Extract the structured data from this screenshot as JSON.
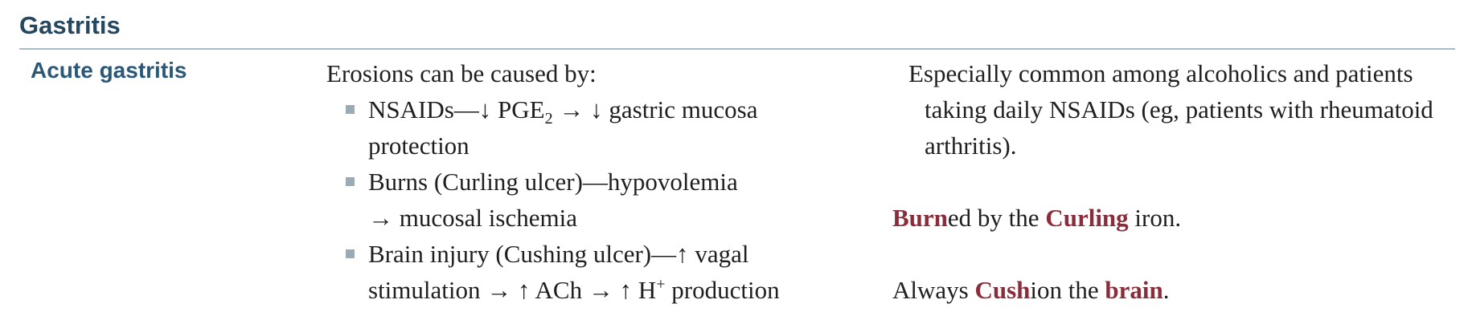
{
  "section": {
    "title": "Gastritis"
  },
  "row": {
    "label": "Acute gastritis",
    "intro": "Erosions can be caused by:",
    "bullets": [
      {
        "b1_a": "NSAIDs—",
        "b1_arrow1": "↓",
        "b1_b": " PGE",
        "b1_sub": "2",
        "b1_c": " → ",
        "b1_arrow2": "↓",
        "b1_d": " gastric mucosa protection"
      },
      {
        "b2_a": "Burns (Curling ulcer)—hypovolemia",
        "b2_b": "→ mucosal ischemia"
      },
      {
        "b3_a": "Brain injury (Cushing ulcer)—",
        "b3_up1": "↑",
        "b3_b": " vagal stimulation → ",
        "b3_up2": "↑",
        "b3_c": " ACh → ",
        "b3_up3": "↑",
        "b3_d": " H",
        "b3_sup": "+",
        "b3_e": " production"
      }
    ],
    "notes": {
      "common": "Especially common among alcoholics and patients taking daily NSAIDs (eg, patients with rheumatoid arthritis).",
      "curling": {
        "burn": "Burn",
        "a": "ed by the ",
        "curling": "Curling",
        "b": " iron."
      },
      "cushing": {
        "a": "Always ",
        "cush": "Cush",
        "b": "ion the ",
        "brain": "brain",
        "c": "."
      }
    }
  },
  "colors": {
    "heading": "#25475f",
    "label": "#2c5878",
    "accent": "#8b2c3a",
    "rule": "#a6bcc6"
  }
}
